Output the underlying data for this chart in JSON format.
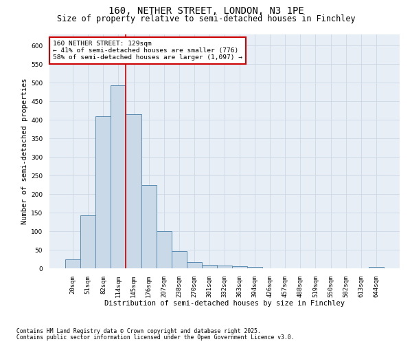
{
  "title_line1": "160, NETHER STREET, LONDON, N3 1PE",
  "title_line2": "Size of property relative to semi-detached houses in Finchley",
  "categories": [
    "20sqm",
    "51sqm",
    "82sqm",
    "114sqm",
    "145sqm",
    "176sqm",
    "207sqm",
    "238sqm",
    "270sqm",
    "301sqm",
    "332sqm",
    "363sqm",
    "394sqm",
    "426sqm",
    "457sqm",
    "488sqm",
    "519sqm",
    "550sqm",
    "582sqm",
    "613sqm",
    "644sqm"
  ],
  "values": [
    25,
    143,
    410,
    493,
    415,
    225,
    100,
    47,
    17,
    10,
    8,
    5,
    3,
    0,
    0,
    0,
    0,
    0,
    0,
    0,
    4
  ],
  "bar_color": "#c9d9e8",
  "bar_edge_color": "#5a8bb0",
  "bar_linewidth": 0.7,
  "xlabel": "Distribution of semi-detached houses by size in Finchley",
  "ylabel": "Number of semi-detached properties",
  "ylim": [
    0,
    630
  ],
  "yticks": [
    0,
    50,
    100,
    150,
    200,
    250,
    300,
    350,
    400,
    450,
    500,
    550,
    600
  ],
  "grid_color": "#cdd8e5",
  "bg_color": "#e8eef5",
  "annotation_title": "160 NETHER STREET: 129sqm",
  "annotation_line2": "← 41% of semi-detached houses are smaller (776)",
  "annotation_line3": "58% of semi-detached houses are larger (1,097) →",
  "red_line_x": 3.48,
  "annotation_box_facecolor": "#ffffff",
  "annotation_box_edgecolor": "#cc0000",
  "footer_line1": "Contains HM Land Registry data © Crown copyright and database right 2025.",
  "footer_line2": "Contains public sector information licensed under the Open Government Licence v3.0.",
  "title_fontsize": 10,
  "subtitle_fontsize": 8.5,
  "axis_label_fontsize": 7.5,
  "tick_fontsize": 6.5,
  "annotation_fontsize": 6.8,
  "footer_fontsize": 5.8
}
